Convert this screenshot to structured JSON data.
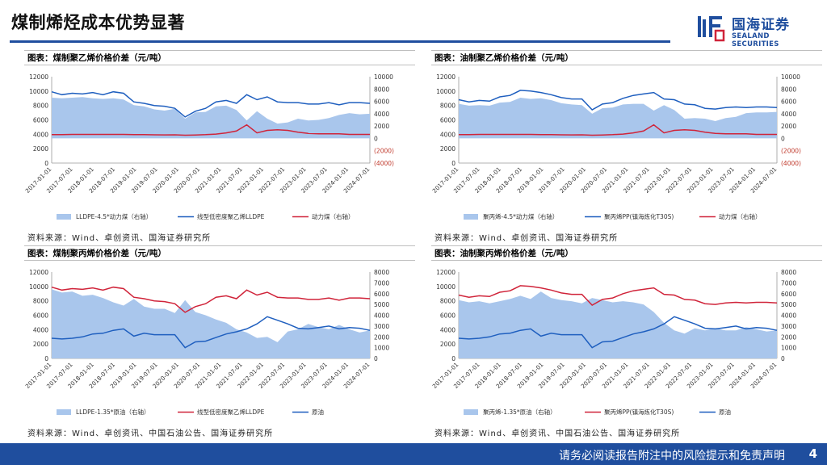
{
  "page": {
    "title": "煤制烯烃成本优势显著",
    "logo_cn": "国海证券",
    "logo_en": "SEALAND SECURITIES",
    "footer": "请务必阅读报告附注中的风险提示和免责声明",
    "page_number": "4"
  },
  "x_ticks": [
    "2017-01-01",
    "2017-07-01",
    "2018-01-01",
    "2018-07-01",
    "2019-01-01",
    "2019-07-01",
    "2020-01-01",
    "2020-07-01",
    "2021-01-01",
    "2021-07-01",
    "2022-01-01",
    "2022-07-01",
    "2023-01-01",
    "2023-07-01",
    "2024-01-01",
    "2024-07-01"
  ],
  "chart_data": [
    {
      "id": "c1",
      "title": "图表：煤制聚乙烯价格价差（元/吨）",
      "source": "资料来源：Wind、卓创资讯、国海证券研究所",
      "type": "area+line",
      "x": [
        "2017-01",
        "2017-04",
        "2017-07",
        "2017-10",
        "2018-01",
        "2018-04",
        "2018-07",
        "2018-10",
        "2019-01",
        "2019-04",
        "2019-07",
        "2019-10",
        "2020-01",
        "2020-04",
        "2020-07",
        "2020-10",
        "2021-01",
        "2021-04",
        "2021-07",
        "2021-10",
        "2022-01",
        "2022-04",
        "2022-07",
        "2022-10",
        "2023-01",
        "2023-04",
        "2023-07",
        "2023-10",
        "2024-01",
        "2024-04",
        "2024-07",
        "2024-10"
      ],
      "left_axis": {
        "min": 0,
        "max": 12000,
        "ticks": [
          "12000",
          "10000",
          "8000",
          "6000",
          "4000",
          "2000",
          "0"
        ]
      },
      "right_axis": {
        "min": -4000,
        "max": 10000,
        "ticks": [
          "10000",
          "8000",
          "6000",
          "4000",
          "2000",
          "0",
          "(2000)",
          "(4000)"
        ]
      },
      "series": [
        {
          "name": "LLDPE-4.5*动力煤（右轴）",
          "kind": "area",
          "axis": "right",
          "color": "#a9c6ec",
          "values": [
            6600,
            6500,
            6600,
            6700,
            6500,
            6400,
            6500,
            6300,
            5400,
            5200,
            4700,
            4500,
            4800,
            3200,
            4200,
            4300,
            5200,
            5300,
            4600,
            2900,
            4400,
            3200,
            2400,
            2600,
            3200,
            2900,
            3000,
            3300,
            3800,
            4100,
            3900,
            4000
          ]
        },
        {
          "name": "线型低密度聚乙烯LLDPE",
          "kind": "line",
          "axis": "left",
          "color": "#1f5fbf",
          "values": [
            9900,
            9500,
            9700,
            9600,
            9800,
            9500,
            9900,
            9700,
            8500,
            8300,
            8000,
            7900,
            7600,
            6400,
            7200,
            7600,
            8500,
            8700,
            8300,
            9500,
            8800,
            9200,
            8500,
            8400,
            8400,
            8200,
            8200,
            8400,
            8100,
            8400,
            8400,
            8300
          ]
        },
        {
          "name": "动力煤（右轴）",
          "kind": "line",
          "axis": "right",
          "color": "#d0243a",
          "values": [
            600,
            600,
            650,
            650,
            650,
            650,
            650,
            650,
            620,
            600,
            580,
            560,
            580,
            520,
            550,
            600,
            700,
            900,
            1200,
            2200,
            900,
            1300,
            1400,
            1300,
            1000,
            800,
            750,
            750,
            750,
            650,
            650,
            650
          ]
        }
      ]
    },
    {
      "id": "c2",
      "title": "图表：油制聚乙烯价格价差（元/吨）",
      "source": "资料来源：Wind、卓创资讯、国海证券研究所",
      "type": "area+line",
      "x": [
        "2017-01",
        "2017-04",
        "2017-07",
        "2017-10",
        "2018-01",
        "2018-04",
        "2018-07",
        "2018-10",
        "2019-01",
        "2019-04",
        "2019-07",
        "2019-10",
        "2020-01",
        "2020-04",
        "2020-07",
        "2020-10",
        "2021-01",
        "2021-04",
        "2021-07",
        "2021-10",
        "2022-01",
        "2022-04",
        "2022-07",
        "2022-10",
        "2023-01",
        "2023-04",
        "2023-07",
        "2023-10",
        "2024-01",
        "2024-04",
        "2024-07",
        "2024-10"
      ],
      "left_axis": {
        "min": 0,
        "max": 12000,
        "ticks": [
          "12000",
          "10000",
          "8000",
          "6000",
          "4000",
          "2000",
          "0"
        ]
      },
      "right_axis": {
        "min": -4000,
        "max": 10000,
        "ticks": [
          "10000",
          "8000",
          "6000",
          "4000",
          "2000",
          "0",
          "(2000)",
          "(4000)"
        ]
      },
      "series": [
        {
          "name": "聚丙烯-4.5*动力煤（右轴）",
          "kind": "area",
          "axis": "right",
          "color": "#a9c6ec",
          "values": [
            5600,
            5300,
            5400,
            5300,
            5800,
            5900,
            6600,
            6400,
            6500,
            6200,
            5700,
            5500,
            5400,
            4000,
            4900,
            5000,
            5500,
            5600,
            5600,
            4500,
            5400,
            4600,
            3200,
            3300,
            3200,
            2800,
            3300,
            3500,
            4100,
            4200,
            4200,
            4300
          ]
        },
        {
          "name": "聚丙烯PP(镇海炼化T30S)",
          "kind": "line",
          "axis": "left",
          "color": "#1f5fbf",
          "values": [
            8800,
            8500,
            8700,
            8600,
            9200,
            9400,
            10100,
            10000,
            9800,
            9500,
            9100,
            8900,
            8900,
            7400,
            8200,
            8400,
            9000,
            9400,
            9600,
            9800,
            8900,
            8800,
            8200,
            8100,
            7600,
            7500,
            7700,
            7800,
            7700,
            7800,
            7800,
            7700
          ]
        },
        {
          "name": "动力煤（右轴）",
          "kind": "line",
          "axis": "right",
          "color": "#d0243a",
          "values": [
            600,
            600,
            650,
            650,
            650,
            650,
            650,
            650,
            620,
            600,
            580,
            560,
            580,
            520,
            550,
            600,
            700,
            900,
            1200,
            2200,
            900,
            1300,
            1400,
            1300,
            1000,
            800,
            750,
            750,
            750,
            650,
            650,
            650
          ]
        }
      ]
    },
    {
      "id": "c3",
      "title": "图表：煤制聚丙烯价格价差（元/吨）",
      "source": "资料来源：Wind、卓创资讯、中国石油公告、国海证券研究所",
      "type": "area+line",
      "x": [
        "2017-01",
        "2017-04",
        "2017-07",
        "2017-10",
        "2018-01",
        "2018-04",
        "2018-07",
        "2018-10",
        "2019-01",
        "2019-04",
        "2019-07",
        "2019-10",
        "2020-01",
        "2020-04",
        "2020-07",
        "2020-10",
        "2021-01",
        "2021-04",
        "2021-07",
        "2021-10",
        "2022-01",
        "2022-04",
        "2022-07",
        "2022-10",
        "2023-01",
        "2023-04",
        "2023-07",
        "2023-10",
        "2024-01",
        "2024-04",
        "2024-07",
        "2024-10"
      ],
      "left_axis": {
        "min": 0,
        "max": 12000,
        "ticks": [
          "12000",
          "10000",
          "8000",
          "6000",
          "4000",
          "2000",
          "0"
        ]
      },
      "right_axis": {
        "min": 0,
        "max": 8000,
        "ticks": [
          "8000",
          "7000",
          "6000",
          "5000",
          "4000",
          "3000",
          "2000",
          "1000",
          "0"
        ]
      },
      "series": [
        {
          "name": "LLDPE-1.35*原油（右轴）",
          "kind": "area",
          "axis": "right",
          "color": "#a9c6ec",
          "values": [
            6400,
            6100,
            6200,
            5800,
            5900,
            5600,
            5200,
            4900,
            5500,
            4800,
            4600,
            4600,
            4200,
            5400,
            4300,
            4000,
            3600,
            3300,
            2700,
            2400,
            1900,
            2000,
            1500,
            2500,
            2700,
            3200,
            2900,
            2700,
            3100,
            2700,
            2400,
            2600
          ]
        },
        {
          "name": "线型低密度聚乙烯LLDPE",
          "kind": "line",
          "axis": "left",
          "color": "#d0243a",
          "values": [
            9900,
            9500,
            9700,
            9600,
            9800,
            9500,
            9900,
            9700,
            8500,
            8300,
            8000,
            7900,
            7600,
            6400,
            7200,
            7600,
            8500,
            8700,
            8300,
            9500,
            8800,
            9200,
            8500,
            8400,
            8400,
            8200,
            8200,
            8400,
            8100,
            8400,
            8400,
            8300
          ]
        },
        {
          "name": "原油",
          "kind": "line",
          "axis": "left",
          "color": "#1f5fbf",
          "values": [
            2800,
            2700,
            2800,
            3000,
            3400,
            3500,
            3900,
            4100,
            3100,
            3500,
            3300,
            3300,
            3300,
            1500,
            2300,
            2400,
            2900,
            3400,
            3700,
            4100,
            4800,
            5800,
            5300,
            4800,
            4200,
            4100,
            4300,
            4500,
            4100,
            4300,
            4200,
            3900
          ]
        }
      ]
    },
    {
      "id": "c4",
      "title": "图表：油制聚丙烯价格价差（元/吨）",
      "source": "资料来源：Wind、卓创资讯、中国石油公告、国海证券研究所",
      "type": "area+line",
      "x": [
        "2017-01",
        "2017-04",
        "2017-07",
        "2017-10",
        "2018-01",
        "2018-04",
        "2018-07",
        "2018-10",
        "2019-01",
        "2019-04",
        "2019-07",
        "2019-10",
        "2020-01",
        "2020-04",
        "2020-07",
        "2020-10",
        "2021-01",
        "2021-04",
        "2021-07",
        "2021-10",
        "2022-01",
        "2022-04",
        "2022-07",
        "2022-10",
        "2023-01",
        "2023-04",
        "2023-07",
        "2023-10",
        "2024-01",
        "2024-04",
        "2024-07",
        "2024-10"
      ],
      "left_axis": {
        "min": 0,
        "max": 12000,
        "ticks": [
          "12000",
          "10000",
          "8000",
          "6000",
          "4000",
          "2000",
          "0"
        ]
      },
      "right_axis": {
        "min": 0,
        "max": 8000,
        "ticks": [
          "8000",
          "7000",
          "6000",
          "5000",
          "4000",
          "3000",
          "2000",
          "1000",
          "0"
        ]
      },
      "series": [
        {
          "name": "聚丙烯-1.35*原油（右轴）",
          "kind": "area",
          "axis": "right",
          "color": "#a9c6ec",
          "values": [
            5400,
            5200,
            5300,
            5100,
            5300,
            5500,
            5800,
            5500,
            6200,
            5600,
            5400,
            5300,
            5100,
            5600,
            5400,
            5200,
            5300,
            5200,
            5000,
            4300,
            3300,
            2600,
            2300,
            2800,
            2600,
            2800,
            2600,
            2600,
            2900,
            2700,
            2500,
            2600
          ]
        },
        {
          "name": "聚丙烯PP(镇海炼化T30S)",
          "kind": "line",
          "axis": "left",
          "color": "#d0243a",
          "values": [
            8800,
            8500,
            8700,
            8600,
            9200,
            9400,
            10100,
            10000,
            9800,
            9500,
            9100,
            8900,
            8900,
            7400,
            8200,
            8400,
            9000,
            9400,
            9600,
            9800,
            8900,
            8800,
            8200,
            8100,
            7600,
            7500,
            7700,
            7800,
            7700,
            7800,
            7800,
            7700
          ]
        },
        {
          "name": "原油",
          "kind": "line",
          "axis": "left",
          "color": "#1f5fbf",
          "values": [
            2800,
            2700,
            2800,
            3000,
            3400,
            3500,
            3900,
            4100,
            3100,
            3500,
            3300,
            3300,
            3300,
            1500,
            2300,
            2400,
            2900,
            3400,
            3700,
            4100,
            4800,
            5800,
            5300,
            4800,
            4200,
            4100,
            4300,
            4500,
            4100,
            4300,
            4200,
            3900
          ]
        }
      ]
    }
  ]
}
